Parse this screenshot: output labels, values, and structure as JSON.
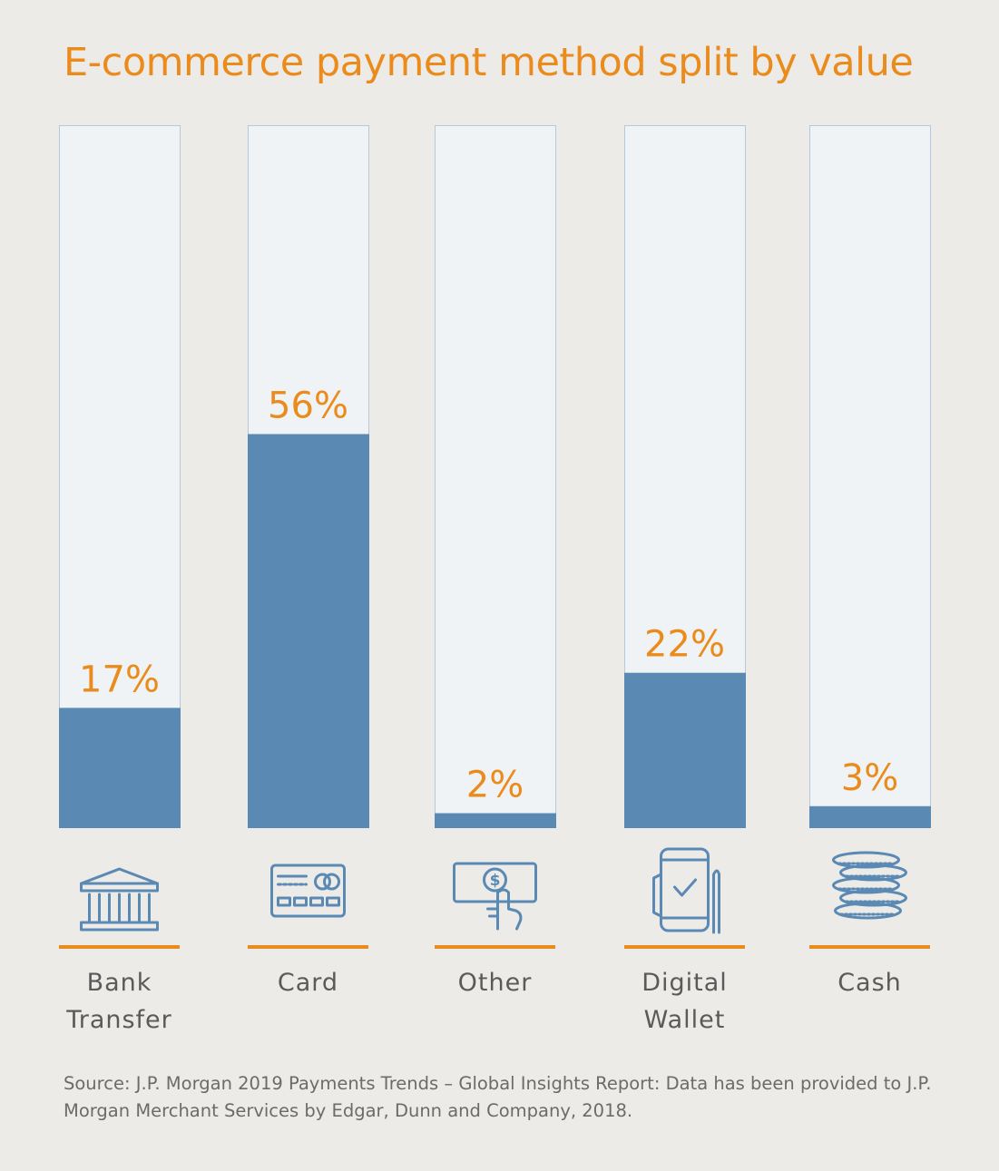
{
  "chart_data": {
    "type": "bar",
    "title": "E-commerce payment method split by value",
    "categories": [
      "Bank Transfer",
      "Card",
      "Other",
      "Digital Wallet",
      "Cash"
    ],
    "category_lines": [
      [
        "Bank",
        "Transfer"
      ],
      [
        "Card"
      ],
      [
        "Other"
      ],
      [
        "Digital",
        "Wallet"
      ],
      [
        "Cash"
      ]
    ],
    "values": [
      17,
      56,
      2,
      22,
      3
    ],
    "data_labels": [
      "17%",
      "56%",
      "2%",
      "22%",
      "3%"
    ],
    "ylim": [
      0,
      100
    ],
    "unit": "%",
    "icons": [
      "bank-icon",
      "credit-card-icon",
      "cash-note-icon",
      "mobile-wallet-icon",
      "coins-icon"
    ]
  },
  "source": "Source: J.P. Morgan 2019 Payments Trends – Global Insights Report: Data has been provided to J.P. Morgan Merchant Services by Edgar, Dunn and Company, 2018.",
  "colors": {
    "background": "#edebe7",
    "track": "#eff3f5",
    "track_border": "#b6c9da",
    "bar": "#5a89b4",
    "accent": "#ea8b1c",
    "icon": "#5a89b4",
    "label_text": "#5a5a5a",
    "source_text": "#6b6b6b"
  }
}
